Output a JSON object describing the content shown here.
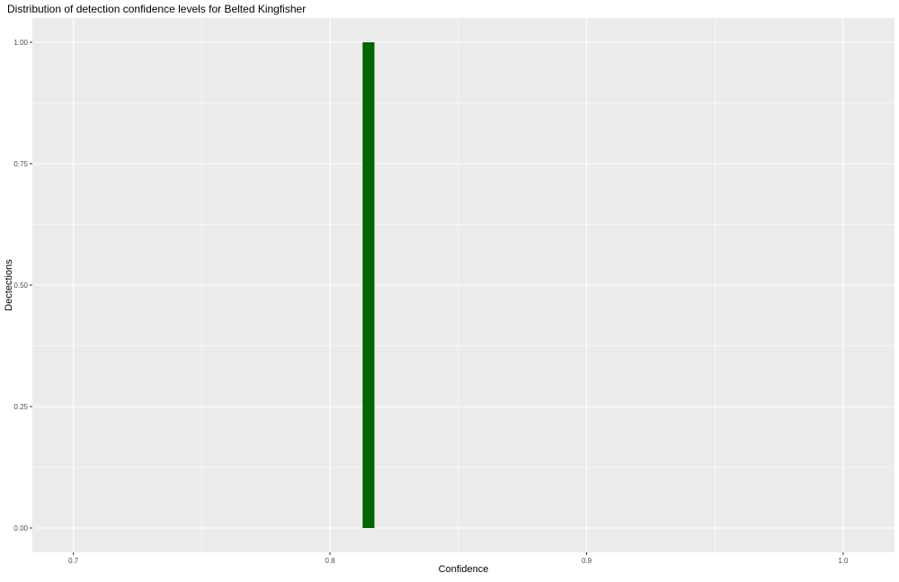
{
  "chart_data": {
    "type": "bar",
    "title": "Distribution of detection confidence levels for Belted Kingfisher",
    "xlabel": "Confidence",
    "ylabel": "Dectections",
    "xlim": [
      0.684,
      1.02
    ],
    "ylim": [
      -0.05,
      1.05
    ],
    "x_ticks": [
      "0.7",
      "0.8",
      "0.9",
      "1.0"
    ],
    "x_tick_values": [
      0.7,
      0.8,
      0.9,
      1.0
    ],
    "y_ticks": [
      "0.00",
      "0.25",
      "0.50",
      "0.75",
      "1.00"
    ],
    "y_tick_values": [
      0,
      0.25,
      0.5,
      0.75,
      1.0
    ],
    "bins": [
      {
        "x": 0.815,
        "width": 0.0046,
        "count": 1
      }
    ],
    "grid": true,
    "colors": {
      "bar": "#006400",
      "panel": "#EBEBEB",
      "grid": "#FFFFFF"
    }
  }
}
